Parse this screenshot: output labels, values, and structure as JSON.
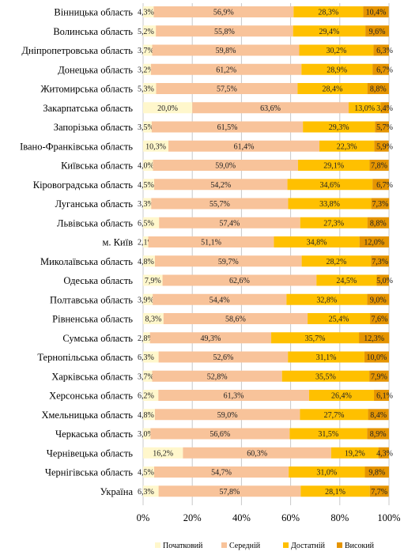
{
  "colors": {
    "series": [
      "#FFF7CC",
      "#F8C39A",
      "#FFC000",
      "#E59400"
    ],
    "grid": "#C9C9C9",
    "background": "#FFFFFF"
  },
  "chart_data": {
    "type": "bar",
    "orientation": "horizontal",
    "stacked": "percent",
    "categories": [
      "Вінницька область",
      "Волинська область",
      "Дніпропетровська область",
      "Донецька область",
      "Житомирська область",
      "Закарпатська область",
      "Запорізька область",
      "Івано-Франківська область",
      "Київська область",
      "Кіровоградська область",
      "Луганська область",
      "Львівська область",
      "м. Київ",
      "Миколаївська область",
      "Одеська область",
      "Полтавська область",
      "Рівненська область",
      "Сумська область",
      "Тернопільська область",
      "Харківська область",
      "Херсонська область",
      "Хмельницька область",
      "Черкаська область",
      "Чернівецька область",
      "Чернігівська область",
      "Україна"
    ],
    "series": [
      {
        "name": "Початковий",
        "values": [
          4.3,
          5.2,
          3.7,
          3.2,
          5.3,
          20.0,
          3.5,
          10.3,
          4.0,
          4.5,
          3.3,
          6.5,
          2.1,
          4.8,
          7.9,
          3.9,
          8.3,
          2.8,
          6.3,
          3.7,
          6.2,
          4.8,
          3.0,
          16.2,
          4.5,
          6.3
        ]
      },
      {
        "name": "Середній",
        "values": [
          56.9,
          55.8,
          59.8,
          61.2,
          57.5,
          63.6,
          61.5,
          61.4,
          59.0,
          54.2,
          55.7,
          57.4,
          51.1,
          59.7,
          62.6,
          54.4,
          58.6,
          49.3,
          52.6,
          52.8,
          61.3,
          59.0,
          56.6,
          60.3,
          54.7,
          57.8
        ]
      },
      {
        "name": "Достатній",
        "values": [
          28.3,
          29.4,
          30.2,
          28.9,
          28.4,
          13.0,
          29.3,
          22.3,
          29.1,
          34.6,
          33.8,
          27.3,
          34.8,
          28.2,
          24.5,
          32.8,
          25.4,
          35.7,
          31.1,
          35.5,
          26.4,
          27.7,
          31.5,
          19.2,
          31.0,
          28.1
        ]
      },
      {
        "name": "Високий",
        "values": [
          10.4,
          9.6,
          6.3,
          6.7,
          8.8,
          3.4,
          5.7,
          5.9,
          7.8,
          6.7,
          7.3,
          8.8,
          12.0,
          7.3,
          5.0,
          9.0,
          7.6,
          12.3,
          10.0,
          7.9,
          6.1,
          8.4,
          8.9,
          4.3,
          9.8,
          7.7
        ]
      }
    ],
    "xlim": [
      0,
      100
    ],
    "xticks": [
      "0%",
      "20%",
      "40%",
      "60%",
      "80%",
      "100%"
    ],
    "grid": true,
    "legend": "bottom",
    "value_format": "decimal-comma-percent"
  }
}
